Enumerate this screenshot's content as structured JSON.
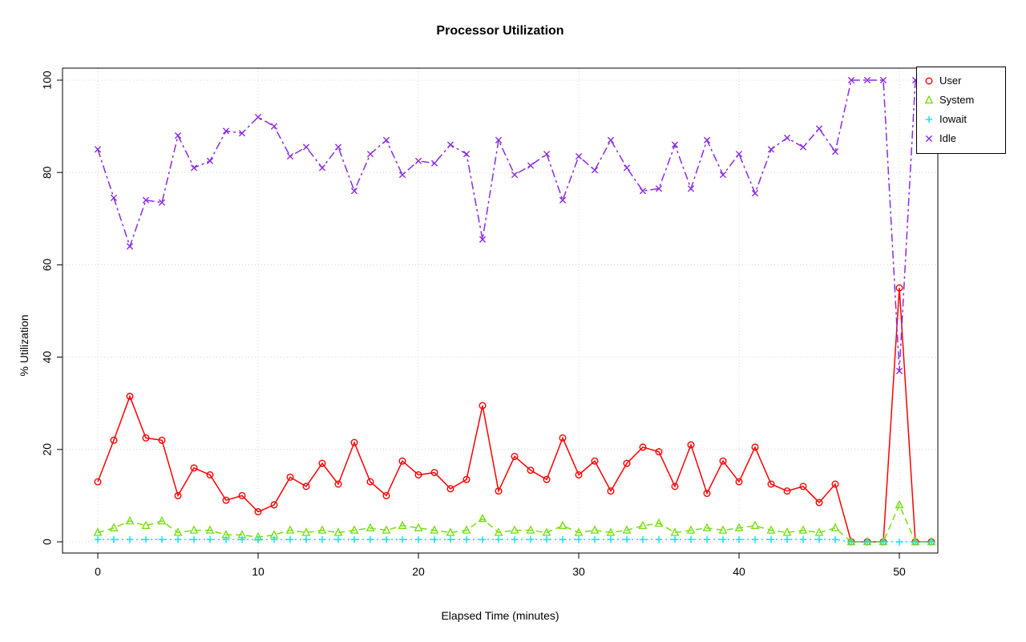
{
  "chart_data": {
    "type": "line",
    "title": "Processor Utilization",
    "xlabel": "Elapsed Time (minutes)",
    "ylabel": "% Utilization",
    "x": [
      0,
      1,
      2,
      3,
      4,
      5,
      6,
      7,
      8,
      9,
      10,
      11,
      12,
      13,
      14,
      15,
      16,
      17,
      18,
      19,
      20,
      21,
      22,
      23,
      24,
      25,
      26,
      27,
      28,
      29,
      30,
      31,
      32,
      33,
      34,
      35,
      36,
      37,
      38,
      39,
      40,
      41,
      42,
      43,
      44,
      45,
      46,
      47,
      48,
      49,
      50,
      51,
      52
    ],
    "series": [
      {
        "name": "User",
        "color": "#ff0000",
        "marker": "circle",
        "linestyle": "solid",
        "values": [
          13,
          22,
          31.5,
          22.5,
          22,
          10,
          16,
          14.5,
          9,
          10,
          6.5,
          8,
          14,
          12,
          17,
          12.5,
          21.5,
          13,
          10,
          17.5,
          14.5,
          15,
          11.5,
          13.5,
          29.5,
          11,
          18.5,
          15.5,
          13.5,
          22.5,
          14.5,
          17.5,
          11,
          17,
          20.5,
          19.5,
          12,
          21,
          10.5,
          17.5,
          13,
          20.5,
          12.5,
          11,
          12,
          8.5,
          12.5,
          0,
          0,
          0,
          55,
          0,
          0
        ]
      },
      {
        "name": "System",
        "color": "#76e013",
        "marker": "triangle",
        "linestyle": "dashed",
        "values": [
          2,
          3,
          4.5,
          3.5,
          4.5,
          2,
          2.5,
          2.5,
          1.5,
          1.5,
          1,
          1.5,
          2.5,
          2,
          2.5,
          2,
          2.5,
          3,
          2.5,
          3.5,
          3,
          2.5,
          2,
          2.5,
          5,
          2,
          2.5,
          2.5,
          2,
          3.5,
          2,
          2.5,
          2,
          2.5,
          3.5,
          4,
          2,
          2.5,
          3,
          2.5,
          3,
          3.5,
          2.5,
          2,
          2.5,
          2,
          3,
          0,
          0,
          0,
          8,
          0,
          0
        ]
      },
      {
        "name": "Iowait",
        "color": "#00e5ee",
        "marker": "plus",
        "linestyle": "dotted",
        "values": [
          0.5,
          0.5,
          0.5,
          0.5,
          0.5,
          0.5,
          0.5,
          0.5,
          0.5,
          0.5,
          0.5,
          0.5,
          0.5,
          0.5,
          0.5,
          0.5,
          0.5,
          0.5,
          0.5,
          0.5,
          0.5,
          0.5,
          0.5,
          0.5,
          0.5,
          0.5,
          0.5,
          0.5,
          0.5,
          0.5,
          0.5,
          0.5,
          0.5,
          0.5,
          0.5,
          0.5,
          0.5,
          0.5,
          0.5,
          0.5,
          0.5,
          0.5,
          0.5,
          0.5,
          0.5,
          0.5,
          0.5,
          0,
          0,
          0,
          0,
          0,
          0
        ]
      },
      {
        "name": "Idle",
        "color": "#8a2be2",
        "marker": "x",
        "linestyle": "dashdot",
        "values": [
          85,
          74.5,
          64,
          74,
          73.5,
          88,
          81,
          82.5,
          89,
          88.5,
          92,
          90,
          83.5,
          85.5,
          81,
          85.5,
          76,
          84,
          87,
          79.5,
          82.5,
          82,
          86,
          84,
          65.5,
          87,
          79.5,
          81.5,
          84,
          74,
          83.5,
          80.5,
          87,
          81,
          76,
          76.5,
          86,
          76.5,
          87,
          79.5,
          84,
          75.5,
          85,
          87.5,
          85.5,
          89.5,
          84.5,
          100,
          100,
          100,
          37,
          100,
          100
        ]
      }
    ],
    "xticks": [
      0,
      10,
      20,
      30,
      40,
      50
    ],
    "yticks": [
      0,
      20,
      40,
      60,
      80,
      100
    ],
    "xlim": [
      -2.2,
      54.4
    ],
    "ylim": [
      -2.4,
      102.4
    ],
    "grid": true,
    "grid_color": "#d4d4d4",
    "axis_color": "#000000",
    "legend_position": "top-right"
  }
}
